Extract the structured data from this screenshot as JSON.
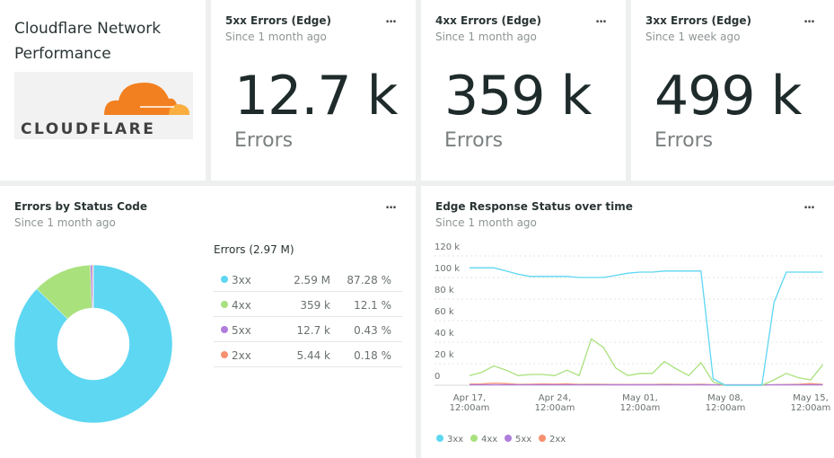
{
  "header": {
    "title": "Cloudflare Network Performance",
    "logo_text": "CLOUDFLARE"
  },
  "billboards": [
    {
      "title": "5xx Errors (Edge)",
      "subtitle": "Since 1 month ago",
      "value": "12.7 k",
      "unit": "Errors",
      "menu": "..."
    },
    {
      "title": "4xx Errors (Edge)",
      "subtitle": "Since 1 month ago",
      "value": "359 k",
      "unit": "Errors",
      "menu": "..."
    },
    {
      "title": "3xx Errors (Edge)",
      "subtitle": "Since 1 week ago",
      "value": "499 k",
      "unit": "Errors",
      "menu": "..."
    }
  ],
  "colors": {
    "3xx": "#5dd7f2",
    "4xx": "#a9e17d",
    "5xx": "#b07ddc",
    "2xx": "#f7906f"
  },
  "chart_data": [
    {
      "type": "pie",
      "title": "Errors by Status Code",
      "subtitle": "Since 1 month ago",
      "menu": "...",
      "legend_title": "Errors (2.97 M)",
      "slices": [
        {
          "name": "3xx",
          "value": "2.59 M",
          "percent": "87.28 %",
          "pct": 87.28
        },
        {
          "name": "4xx",
          "value": "359 k",
          "percent": "12.1 %",
          "pct": 12.1
        },
        {
          "name": "5xx",
          "value": "12.7 k",
          "percent": "0.43 %",
          "pct": 0.43
        },
        {
          "name": "2xx",
          "value": "5.44 k",
          "percent": "0.18 %",
          "pct": 0.18
        }
      ]
    },
    {
      "type": "line",
      "title": "Edge Response Status over time",
      "subtitle": "Since 1 month ago",
      "menu": "...",
      "ylim": [
        0,
        120000
      ],
      "yticks": [
        "0",
        "20 k",
        "40 k",
        "60 k",
        "80 k",
        "100 k",
        "120 k"
      ],
      "xticks": [
        [
          "Apr 17,",
          "12:00am"
        ],
        [
          "Apr 24,",
          "12:00am"
        ],
        [
          "May 01,",
          "12:00am"
        ],
        [
          "May 08,",
          "12:00am"
        ],
        [
          "May 15,",
          "12:00am"
        ]
      ],
      "x_start": "Apr 17",
      "x_step": "1 day",
      "grid": true,
      "legend": "bottom",
      "series": [
        {
          "name": "3xx",
          "values": [
            109000,
            109000,
            109000,
            106000,
            103000,
            101000,
            101000,
            101000,
            101000,
            100000,
            100000,
            100000,
            102000,
            104000,
            105000,
            105000,
            106000,
            106000,
            106000,
            106000,
            6000,
            0,
            0,
            0,
            0,
            77000,
            105000,
            105000,
            105000,
            105000
          ]
        },
        {
          "name": "4xx",
          "values": [
            9000,
            12000,
            18000,
            14000,
            9000,
            10000,
            10000,
            9000,
            14000,
            9000,
            43000,
            35000,
            16000,
            9000,
            11000,
            11000,
            22000,
            15000,
            9000,
            21000,
            3000,
            0,
            0,
            0,
            0,
            5000,
            11000,
            7000,
            5000,
            19000
          ]
        },
        {
          "name": "5xx",
          "values": [
            400,
            400,
            400,
            400,
            400,
            400,
            400,
            400,
            400,
            400,
            400,
            400,
            400,
            400,
            400,
            400,
            400,
            400,
            400,
            400,
            400,
            400,
            400,
            400,
            400,
            400,
            400,
            400,
            400,
            400
          ]
        },
        {
          "name": "2xx",
          "values": [
            1000,
            1200,
            2000,
            1500,
            800,
            900,
            1200,
            1000,
            1300,
            800,
            900,
            800,
            700,
            700,
            700,
            700,
            900,
            800,
            700,
            900,
            500,
            300,
            300,
            300,
            300,
            500,
            700,
            900,
            1500,
            800
          ]
        }
      ]
    }
  ]
}
